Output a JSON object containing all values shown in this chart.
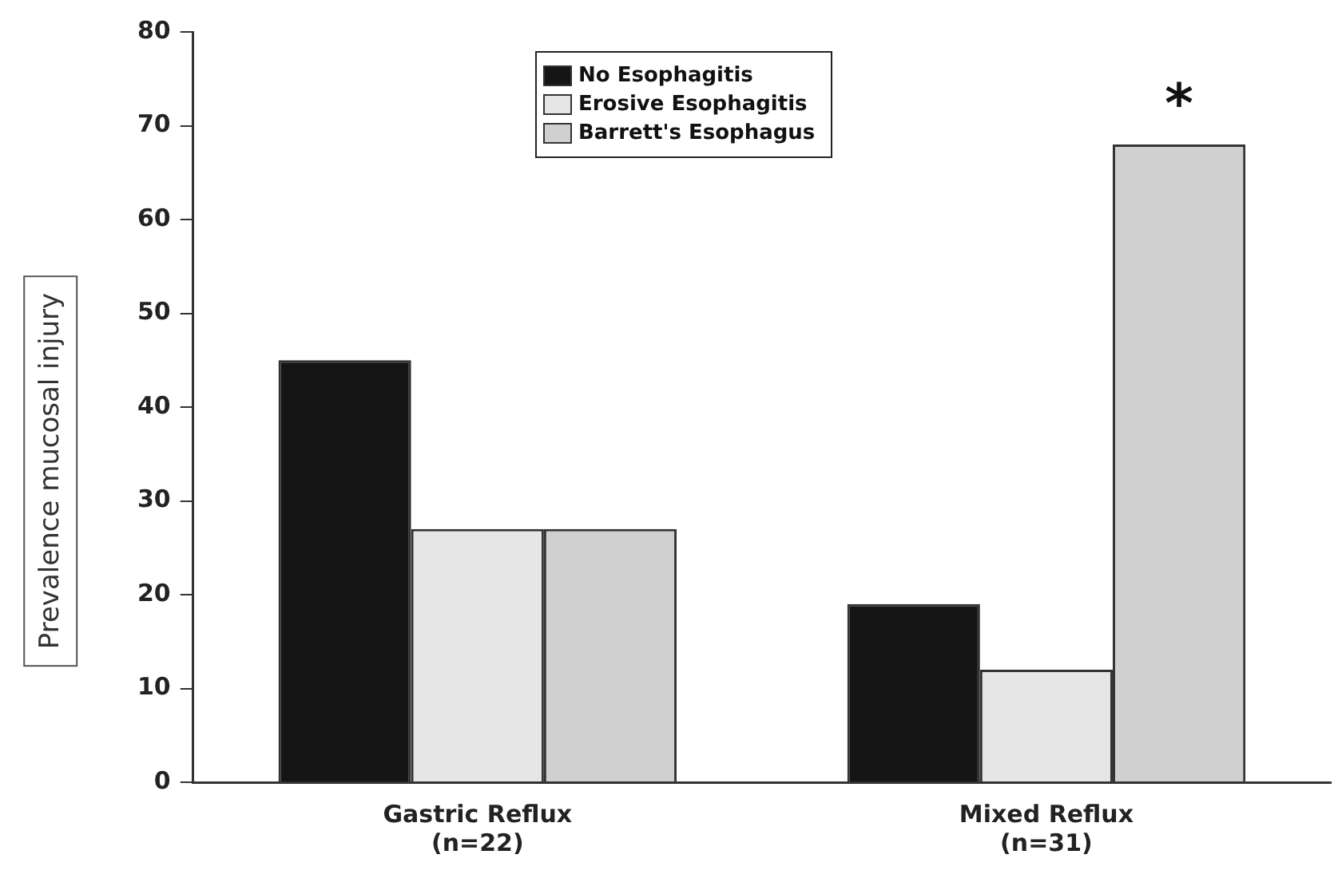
{
  "chart_data": {
    "type": "bar",
    "ylabel": "Prevalence mucosal injury",
    "categories": [
      "Gastric Reflux\n(n=22)",
      "Mixed Reflux\n(n=31)"
    ],
    "series": [
      {
        "name": "No Esophagitis",
        "color": "#151515",
        "values": [
          45,
          19
        ]
      },
      {
        "name": "Erosive Esophagitis",
        "color": "#e6e6e6",
        "values": [
          27,
          12
        ]
      },
      {
        "name": "Barrett's Esophagus",
        "color": "#d0d0d0",
        "values": [
          27,
          68
        ]
      }
    ],
    "ylim": [
      0,
      80
    ],
    "yticks": [
      0,
      10,
      20,
      30,
      40,
      50,
      60,
      70,
      80
    ],
    "grid": false,
    "legend": "top",
    "annotations": [
      "*"
    ]
  }
}
